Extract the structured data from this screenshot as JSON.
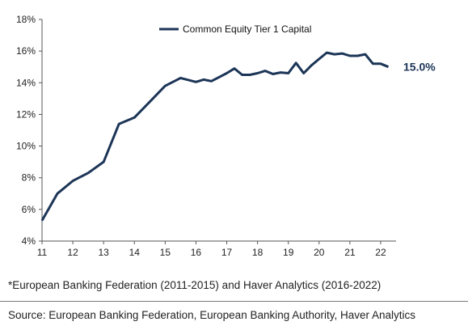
{
  "chart_data": {
    "type": "line",
    "title": "",
    "xlabel": "",
    "ylabel": "",
    "xlim": [
      11,
      22.5
    ],
    "ylim": [
      4,
      18
    ],
    "x_ticks": [
      11,
      12,
      13,
      14,
      15,
      16,
      17,
      18,
      19,
      20,
      21,
      22
    ],
    "x_tick_labels": [
      "11",
      "12",
      "13",
      "14",
      "15",
      "16",
      "17",
      "18",
      "19",
      "20",
      "21",
      "22"
    ],
    "y_ticks": [
      4,
      6,
      8,
      10,
      12,
      14,
      16,
      18
    ],
    "y_tick_labels": [
      "4%",
      "6%",
      "8%",
      "10%",
      "12%",
      "14%",
      "16%",
      "18%"
    ],
    "grid": false,
    "legend_position": "top-center",
    "series": [
      {
        "name": "Common Equity Tier 1 Capital",
        "color": "#1c3557",
        "x": [
          11.0,
          11.5,
          12.0,
          12.5,
          13.0,
          13.5,
          14.0,
          14.5,
          15.0,
          15.5,
          16.0,
          16.25,
          16.5,
          16.75,
          17.0,
          17.25,
          17.5,
          17.75,
          18.0,
          18.25,
          18.5,
          18.75,
          19.0,
          19.25,
          19.5,
          19.75,
          20.0,
          20.25,
          20.5,
          20.75,
          21.0,
          21.25,
          21.5,
          21.75,
          22.0,
          22.25
        ],
        "values": [
          5.3,
          7.0,
          7.8,
          8.3,
          9.0,
          11.4,
          11.8,
          12.8,
          13.8,
          14.3,
          14.05,
          14.2,
          14.1,
          14.35,
          14.6,
          14.9,
          14.5,
          14.5,
          14.6,
          14.75,
          14.55,
          14.65,
          14.6,
          15.25,
          14.6,
          15.1,
          15.5,
          15.9,
          15.8,
          15.85,
          15.7,
          15.7,
          15.8,
          15.2,
          15.2,
          15.0
        ]
      }
    ],
    "end_label": "15.0%"
  },
  "footnote": "*European Banking Federation (2011-2015) and Haver Analytics (2016-2022)",
  "source": "Source: European Banking Federation, European Banking Authority, Haver Analytics"
}
